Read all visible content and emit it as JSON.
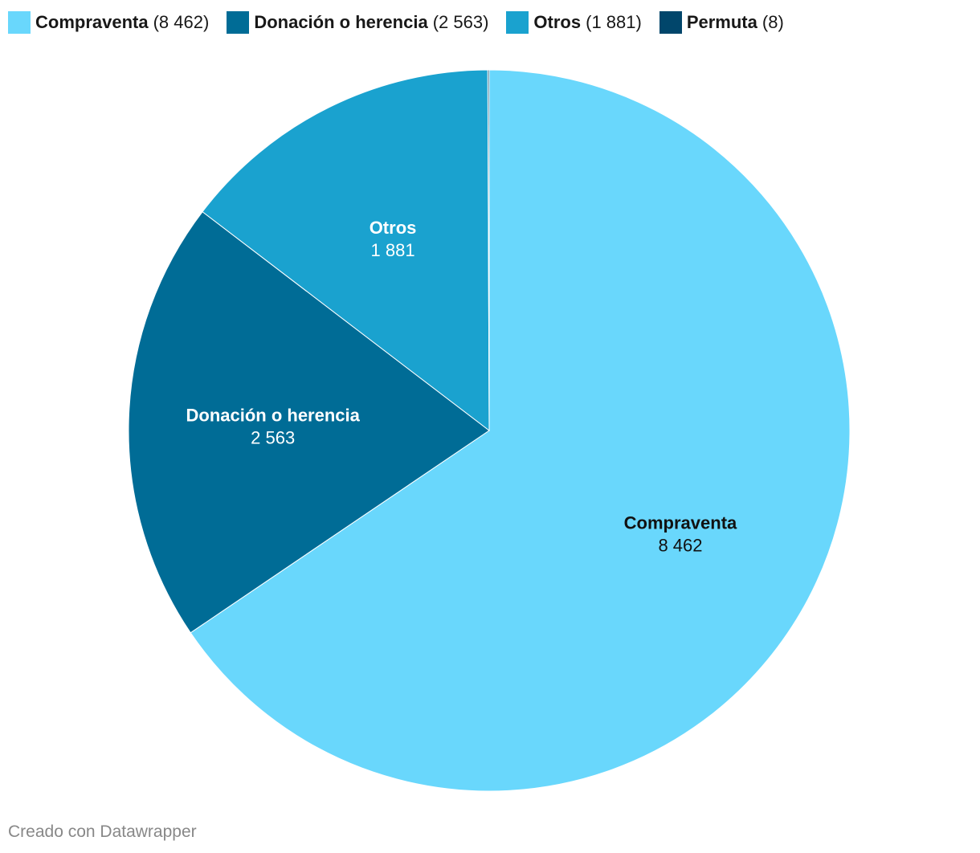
{
  "chart_data": {
    "type": "pie",
    "categories": [
      "Compraventa",
      "Donación o herencia",
      "Otros",
      "Permuta"
    ],
    "values": [
      8462,
      2563,
      1881,
      8
    ],
    "value_labels": [
      "8 462",
      "2 563",
      "1 881",
      "8"
    ],
    "colors": [
      "#69d7fc",
      "#006c96",
      "#1aa2cf",
      "#01466b"
    ],
    "label_colors": [
      "#111111",
      "#ffffff",
      "#ffffff",
      "#ffffff"
    ],
    "start_angle_deg": 0,
    "direction": "clockwise",
    "legend_position": "top-left"
  },
  "legend": {
    "items": [
      {
        "name": "Compraventa",
        "count": "8 462",
        "color": "#69d7fc"
      },
      {
        "name": "Donación o herencia",
        "count": "2 563",
        "color": "#006c96"
      },
      {
        "name": "Otros",
        "count": "1 881",
        "color": "#1aa2cf"
      },
      {
        "name": "Permuta",
        "count": "8",
        "color": "#01466b"
      }
    ]
  },
  "footer": {
    "credit": "Creado con Datawrapper"
  }
}
